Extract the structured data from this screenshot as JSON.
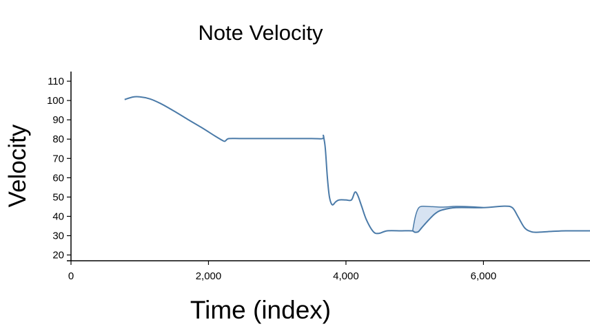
{
  "chart_data": {
    "type": "line",
    "title": "Note Velocity",
    "xlabel": "Time (index)",
    "ylabel": "Velocity",
    "xlim": [
      0,
      7550
    ],
    "ylim": [
      17,
      115
    ],
    "x_ticks": [
      0,
      2000,
      4000,
      6000
    ],
    "x_tick_labels": [
      "0",
      "2,000",
      "4,000",
      "6,000"
    ],
    "y_ticks": [
      20,
      30,
      40,
      50,
      60,
      70,
      80,
      90,
      100,
      110
    ],
    "y_tick_labels": [
      "20",
      "30",
      "40",
      "50",
      "60",
      "70",
      "80",
      "90",
      "100",
      "110"
    ],
    "grid": false,
    "colors": {
      "line": "#4a7aa8",
      "band_fill": "#c9daee"
    },
    "series": [
      {
        "values": [
          [
            780,
            100.5
          ],
          [
            900,
            101.8
          ],
          [
            1000,
            101.9
          ],
          [
            1150,
            100.8
          ],
          [
            1300,
            98.5
          ],
          [
            1500,
            94.5
          ],
          [
            1700,
            90.2
          ],
          [
            1900,
            86
          ],
          [
            2100,
            81.5
          ],
          [
            2220,
            79
          ],
          [
            2250,
            79.2
          ],
          [
            2300,
            80.3
          ],
          [
            2500,
            80.3
          ],
          [
            3000,
            80.3
          ],
          [
            3500,
            80.3
          ],
          [
            3660,
            80.3
          ],
          [
            3670,
            82
          ],
          [
            3680,
            80.3
          ],
          [
            3700,
            75
          ],
          [
            3730,
            60
          ],
          [
            3760,
            50
          ],
          [
            3800,
            46
          ],
          [
            3850,
            47.5
          ],
          [
            3900,
            48.5
          ],
          [
            4000,
            48.5
          ],
          [
            4080,
            48.5
          ],
          [
            4130,
            52.5
          ],
          [
            4170,
            51
          ],
          [
            4230,
            45
          ],
          [
            4300,
            38
          ],
          [
            4400,
            32
          ],
          [
            4480,
            31.2
          ],
          [
            4600,
            32.5
          ],
          [
            4800,
            32.5
          ],
          [
            4960,
            32.5
          ],
          [
            5000,
            31.8
          ],
          [
            5050,
            32
          ],
          [
            5100,
            34
          ],
          [
            5200,
            38
          ],
          [
            5300,
            41.5
          ],
          [
            5400,
            43.3
          ],
          [
            5600,
            44.5
          ],
          [
            6000,
            44.5
          ],
          [
            6300,
            45.3
          ],
          [
            6420,
            44.5
          ],
          [
            6500,
            40
          ],
          [
            6600,
            34
          ],
          [
            6700,
            32
          ],
          [
            6800,
            31.8
          ],
          [
            7000,
            32.2
          ],
          [
            7200,
            32.5
          ],
          [
            7550,
            32.5
          ]
        ]
      }
    ],
    "band": {
      "upper": [
        [
          4970,
          32.5
        ],
        [
          5010,
          40
        ],
        [
          5050,
          44
        ],
        [
          5100,
          45.2
        ],
        [
          5200,
          45.1
        ],
        [
          5400,
          44.8
        ],
        [
          5600,
          45.2
        ],
        [
          5800,
          45
        ],
        [
          6000,
          44.6
        ]
      ],
      "lower": [
        [
          6000,
          44.5
        ],
        [
          5600,
          44.5
        ],
        [
          5400,
          43.3
        ],
        [
          5300,
          41.5
        ],
        [
          5200,
          38
        ],
        [
          5100,
          34
        ],
        [
          5050,
          32
        ],
        [
          5000,
          31.8
        ],
        [
          4970,
          32.5
        ]
      ]
    }
  }
}
